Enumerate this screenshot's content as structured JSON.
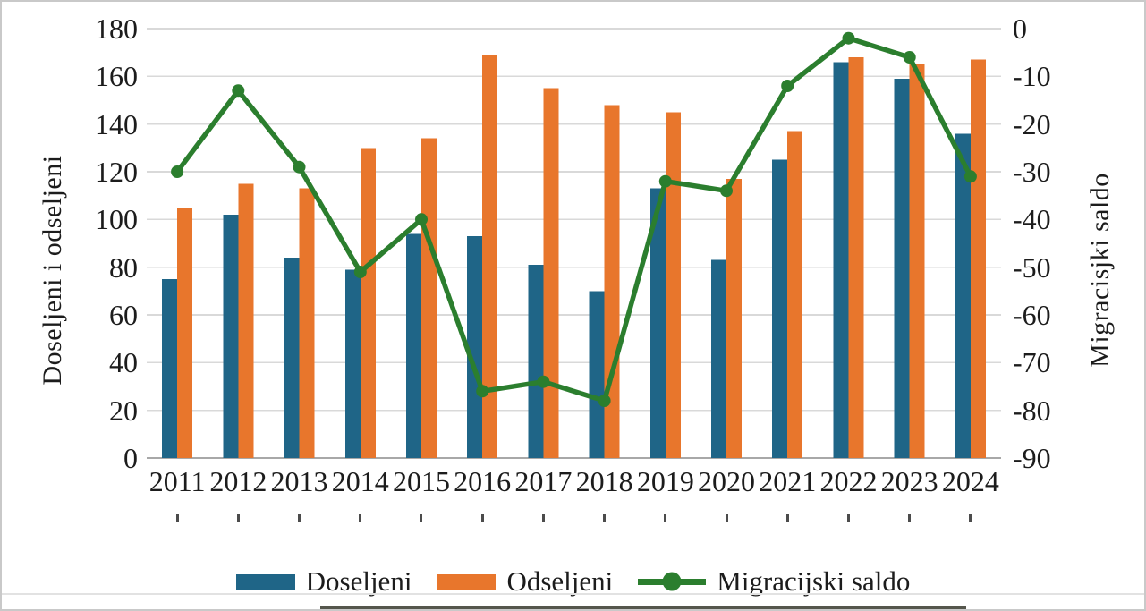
{
  "figure": {
    "left_axis_title": "Doseljeni i odseljeni",
    "right_axis_title": "Migracisjki saldo"
  },
  "legend": {
    "items": [
      {
        "label": "Doseljeni",
        "color": "#1F6587",
        "marker": "bar-swatch"
      },
      {
        "label": "Odseljeni",
        "color": "#E8762C",
        "marker": "bar-swatch"
      },
      {
        "label": "Migracijski saldo",
        "color": "#2B7E2E",
        "marker": "line-with-dot"
      }
    ]
  },
  "chart_data": {
    "type": "combo",
    "categories": [
      "2011",
      "2012",
      "2013",
      "2014",
      "2015",
      "2016",
      "2017",
      "2018",
      "2019",
      "2020",
      "2021",
      "2022",
      "2023",
      "2024"
    ],
    "series": [
      {
        "name": "Doseljeni",
        "type": "bar",
        "axis": "left",
        "color": "#1F6587",
        "values": [
          75,
          102,
          84,
          79,
          94,
          93,
          81,
          70,
          113,
          83,
          125,
          166,
          159,
          136
        ]
      },
      {
        "name": "Odseljeni",
        "type": "bar",
        "axis": "left",
        "color": "#E8762C",
        "values": [
          105,
          115,
          113,
          130,
          134,
          169,
          155,
          148,
          145,
          117,
          137,
          168,
          165,
          167
        ]
      },
      {
        "name": "Migracijski saldo",
        "type": "line",
        "axis": "right",
        "color": "#2B7E2E",
        "values": [
          -30,
          -13,
          -29,
          -51,
          -40,
          -76,
          -74,
          -78,
          -32,
          -34,
          -12,
          -2,
          -6,
          -31
        ]
      }
    ],
    "left_axis": {
      "title": "Doseljeni i odseljeni",
      "min": 0,
      "max": 180,
      "step": 20,
      "ticks": [
        "180",
        "160",
        "140",
        "120",
        "100",
        "80",
        "60",
        "40",
        "20",
        "0"
      ]
    },
    "right_axis": {
      "title": "Migracisjki saldo",
      "min": -90,
      "max": 0,
      "step": 10,
      "ticks": [
        "0",
        "-10",
        "-20",
        "-30",
        "-40",
        "-50",
        "-60",
        "-70",
        "-80",
        "-90"
      ]
    },
    "grid": true,
    "legend_position": "bottom",
    "gridline_color": "#d9d9d9",
    "baseline_color": "#a8a8a8"
  }
}
